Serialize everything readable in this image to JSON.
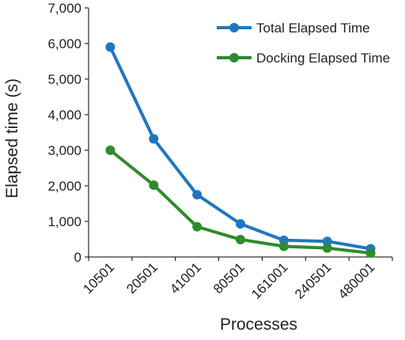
{
  "chart_data": {
    "type": "line",
    "categories": [
      "10501",
      "20501",
      "41001",
      "80501",
      "161001",
      "240501",
      "480001"
    ],
    "series": [
      {
        "name": "Total Elapsed Time",
        "color": "#1f77c0",
        "values": [
          5900,
          3320,
          1750,
          930,
          470,
          440,
          230
        ]
      },
      {
        "name": "Docking Elapsed Time",
        "color": "#2e8b2e",
        "values": [
          3000,
          2020,
          850,
          490,
          300,
          250,
          110
        ]
      }
    ],
    "xlabel": "Processes",
    "ylabel": "Elapsed time (s)",
    "ylim": [
      0,
      7000
    ],
    "yticks": [
      "0",
      "1,000",
      "2,000",
      "3,000",
      "4,000",
      "5,000",
      "6,000",
      "7,000"
    ],
    "grid": false,
    "legend_position": "top-right"
  }
}
